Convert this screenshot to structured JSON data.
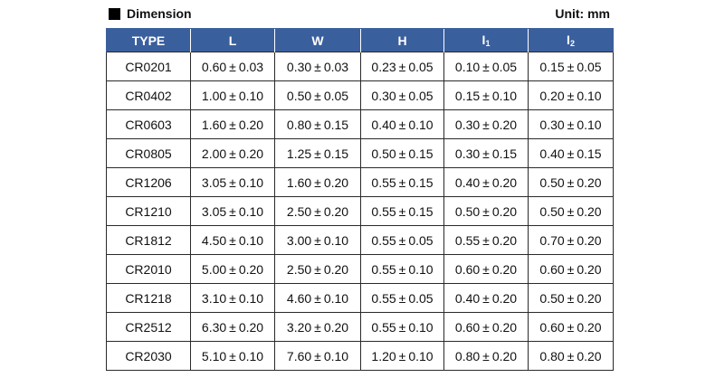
{
  "header": {
    "title": "Dimension",
    "unit": "Unit: mm"
  },
  "table": {
    "columns": [
      "TYPE",
      "L",
      "W",
      "H",
      "I",
      "I"
    ],
    "column_subscripts": [
      "",
      "",
      "",
      "",
      "1",
      "2"
    ],
    "rows": [
      [
        "CR0201",
        "0.60",
        "0.03",
        "0.30",
        "0.03",
        "0.23",
        "0.05",
        "0.10",
        "0.05",
        "0.15",
        "0.05"
      ],
      [
        "CR0402",
        "1.00",
        "0.10",
        "0.50",
        "0.05",
        "0.30",
        "0.05",
        "0.15",
        "0.10",
        "0.20",
        "0.10"
      ],
      [
        "CR0603",
        "1.60",
        "0.20",
        "0.80",
        "0.15",
        "0.40",
        "0.10",
        "0.30",
        "0.20",
        "0.30",
        "0.10"
      ],
      [
        "CR0805",
        "2.00",
        "0.20",
        "1.25",
        "0.15",
        "0.50",
        "0.15",
        "0.30",
        "0.15",
        "0.40",
        "0.15"
      ],
      [
        "CR1206",
        "3.05",
        "0.10",
        "1.60",
        "0.20",
        "0.55",
        "0.15",
        "0.40",
        "0.20",
        "0.50",
        "0.20"
      ],
      [
        "CR1210",
        "3.05",
        "0.10",
        "2.50",
        "0.20",
        "0.55",
        "0.15",
        "0.50",
        "0.20",
        "0.50",
        "0.20"
      ],
      [
        "CR1812",
        "4.50",
        "0.10",
        "3.00",
        "0.10",
        "0.55",
        "0.05",
        "0.55",
        "0.20",
        "0.70",
        "0.20"
      ],
      [
        "CR2010",
        "5.00",
        "0.20",
        "2.50",
        "0.20",
        "0.55",
        "0.10",
        "0.60",
        "0.20",
        "0.60",
        "0.20"
      ],
      [
        "CR1218",
        "3.10",
        "0.10",
        "4.60",
        "0.10",
        "0.55",
        "0.05",
        "0.40",
        "0.20",
        "0.50",
        "0.20"
      ],
      [
        "CR2512",
        "6.30",
        "0.20",
        "3.20",
        "0.20",
        "0.55",
        "0.10",
        "0.60",
        "0.20",
        "0.60",
        "0.20"
      ],
      [
        "CR2030",
        "5.10",
        "0.10",
        "7.60",
        "0.10",
        "1.20",
        "0.10",
        "0.80",
        "0.20",
        "0.80",
        "0.20"
      ]
    ],
    "tolerance_symbol": "±"
  },
  "colors": {
    "header_bg": "#3a5f9d",
    "header_text": "#ffffff",
    "border": "#2a2a2a"
  }
}
